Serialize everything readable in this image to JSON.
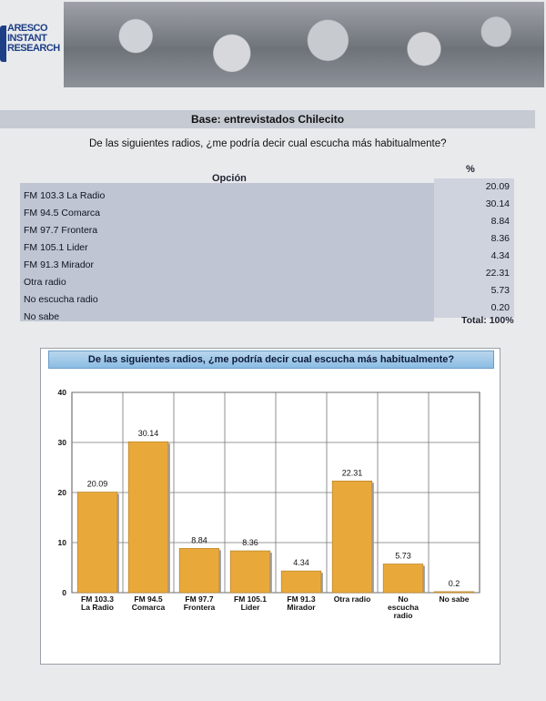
{
  "header": {
    "brand_lines": [
      "ARESCO",
      "INSTANT",
      "RESEARCH"
    ]
  },
  "base_title": "Base: entrevistados Chilecito",
  "question": "De las siguientes radios, ¿me podría decir cual escucha más habitualmente?",
  "table": {
    "col_option": "Opción",
    "col_percent": "%",
    "rows": [
      {
        "label": "FM 103.3 La Radio",
        "value": "20.09"
      },
      {
        "label": "FM 94.5 Comarca",
        "value": "30.14"
      },
      {
        "label": "FM 97.7 Frontera",
        "value": "8.84"
      },
      {
        "label": "FM 105.1 Lider",
        "value": "8.36"
      },
      {
        "label": "FM 91.3 Mirador",
        "value": "4.34"
      },
      {
        "label": "Otra radio",
        "value": "22.31"
      },
      {
        "label": "No escucha radio",
        "value": "5.73"
      },
      {
        "label": "No sabe",
        "value": "0.20"
      }
    ],
    "total": "Total: 100%"
  },
  "chart_data": {
    "type": "bar",
    "title": "De las siguientes radios, ¿me podría decir cual escucha más habitualmente?",
    "categories": [
      [
        "FM 103.3",
        "La Radio"
      ],
      [
        "FM 94.5",
        "Comarca"
      ],
      [
        "FM 97.7",
        "Frontera"
      ],
      [
        "FM 105.1",
        "Lider"
      ],
      [
        "FM  91.3",
        "Mirador"
      ],
      [
        "Otra radio"
      ],
      [
        "No",
        "escucha",
        "radio"
      ],
      [
        "No sabe"
      ]
    ],
    "values": [
      20.09,
      30.14,
      8.84,
      8.36,
      4.34,
      22.31,
      5.73,
      0.2
    ],
    "data_labels": [
      "20.09",
      "30.14",
      "8.84",
      "8.36",
      "4.34",
      "22.31",
      "5.73",
      "0.2"
    ],
    "plot_heights": [
      20.09,
      30.14,
      8.84,
      8.36,
      4.34,
      22.31,
      5.73,
      0.2
    ],
    "ylim": [
      0,
      40
    ],
    "yticks": [
      0,
      10,
      20,
      30,
      40
    ],
    "grid": true,
    "bar_color": "#e9a93a"
  }
}
